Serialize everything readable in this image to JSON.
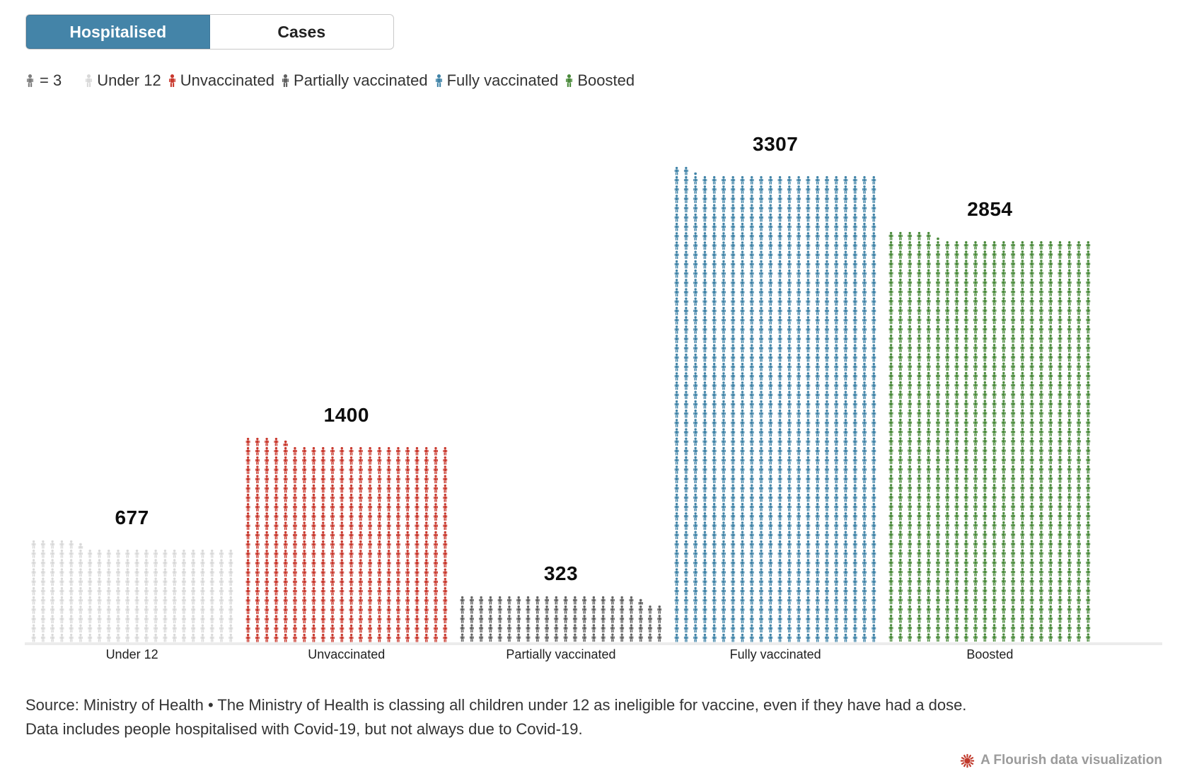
{
  "tabs": [
    {
      "label": "Hospitalised",
      "active": true
    },
    {
      "label": "Cases",
      "active": false
    }
  ],
  "legend": {
    "unit_label": "= 3",
    "unit_icon_color": "#7d7d7d",
    "items": [
      {
        "label": "Under 12",
        "color": "#d9d9d9"
      },
      {
        "label": "Unvaccinated",
        "color": "#c9392e"
      },
      {
        "label": "Partially vaccinated",
        "color": "#616161"
      },
      {
        "label": "Fully vaccinated",
        "color": "#4184a8"
      },
      {
        "label": "Boosted",
        "color": "#4a8a3b"
      }
    ]
  },
  "chart_data": {
    "type": "pictogram",
    "title": "",
    "unit_value": 3,
    "unit_label": "= 3",
    "columns_per_bar": 22,
    "categories": [
      "Under 12",
      "Unvaccinated",
      "Partially vaccinated",
      "Fully vaccinated",
      "Boosted"
    ],
    "values": [
      677,
      1400,
      323,
      3307,
      2854
    ],
    "colors": [
      "#d9d9d9",
      "#c9392e",
      "#616161",
      "#4184a8",
      "#4a8a3b"
    ],
    "value_labels": [
      "677",
      "1400",
      "323",
      "3307",
      "2854"
    ],
    "legend_position": "top",
    "grid": false,
    "baseline_color": "#ececec"
  },
  "footer": {
    "line1": "Source: Ministry of Health • The Ministry of Health is classing all children under 12 as ineligible for vaccine, even if they have had a dose.",
    "line2": "Data includes people hospitalised with Covid-19, but not always due to Covid-19."
  },
  "credit": {
    "label": "A Flourish data visualization",
    "logo_color": "#c0392b",
    "text_color": "#9b9b9b"
  }
}
